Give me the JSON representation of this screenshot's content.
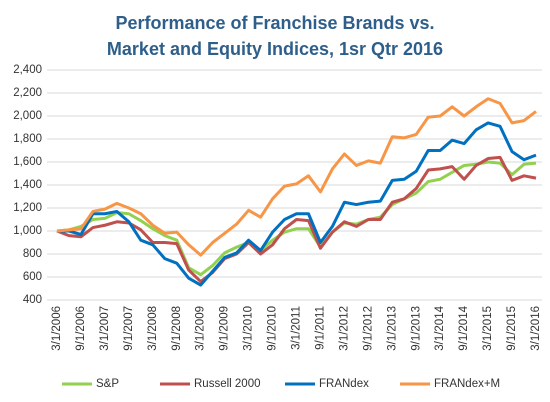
{
  "chart_data": {
    "type": "line",
    "title": "Performance of Franchise Brands vs. Market and Equity Indices, 1sr Qtr 2016",
    "categories": [
      "3/1/2006",
      null,
      "9/1/2006",
      null,
      "3/1/2007",
      null,
      "9/1/2007",
      null,
      "3/1/2008",
      null,
      "9/1/2008",
      null,
      "3/1/2009",
      null,
      "9/1/2009",
      null,
      "3/1/2010",
      null,
      "9/1/2010",
      null,
      "3/1/2011",
      null,
      "9/1/2011",
      null,
      "3/1/2012",
      null,
      "9/1/2012",
      null,
      "3/1/2013",
      null,
      "9/1/2013",
      null,
      "3/1/2014",
      null,
      "9/1/2014",
      null,
      "3/1/2015",
      null,
      "9/1/2015",
      null,
      "3/1/2016"
    ],
    "series": [
      {
        "name": "S&P",
        "color": "#92d050",
        "values": [
          1000,
          1010,
          1040,
          1100,
          1110,
          1160,
          1150,
          1090,
          1020,
          960,
          920,
          680,
          620,
          700,
          810,
          860,
          900,
          830,
          920,
          990,
          1020,
          1020,
          860,
          990,
          1070,
          1060,
          1100,
          1120,
          1230,
          1280,
          1330,
          1430,
          1450,
          1510,
          1570,
          1580,
          1600,
          1590,
          1490,
          1580,
          1590
        ]
      },
      {
        "name": "Russell 2000",
        "color": "#c0504d",
        "values": [
          1000,
          960,
          950,
          1030,
          1050,
          1080,
          1070,
          1010,
          900,
          900,
          890,
          660,
          560,
          640,
          760,
          800,
          900,
          800,
          880,
          1020,
          1100,
          1090,
          850,
          990,
          1080,
          1040,
          1100,
          1100,
          1250,
          1280,
          1370,
          1530,
          1540,
          1560,
          1450,
          1570,
          1630,
          1640,
          1440,
          1480,
          1460
        ]
      },
      {
        "name": "FRANdex",
        "color": "#0070c0",
        "values": [
          1000,
          1000,
          970,
          1150,
          1150,
          1170,
          1080,
          920,
          880,
          760,
          720,
          590,
          530,
          650,
          770,
          810,
          920,
          830,
          990,
          1100,
          1150,
          1150,
          900,
          1040,
          1250,
          1230,
          1250,
          1260,
          1440,
          1450,
          1520,
          1700,
          1700,
          1790,
          1760,
          1880,
          1940,
          1910,
          1690,
          1620,
          1660
        ]
      },
      {
        "name": "FRANdex+M",
        "color": "#f79646",
        "values": [
          1000,
          1010,
          1020,
          1170,
          1190,
          1240,
          1200,
          1150,
          1050,
          980,
          990,
          880,
          790,
          900,
          980,
          1060,
          1180,
          1120,
          1280,
          1390,
          1410,
          1480,
          1340,
          1540,
          1670,
          1570,
          1610,
          1590,
          1820,
          1810,
          1840,
          1990,
          2000,
          2080,
          2000,
          2080,
          2150,
          2110,
          1940,
          1960,
          2040
        ]
      }
    ],
    "ylim": [
      400,
      2400
    ],
    "yticks": [
      400,
      600,
      800,
      {
        "value": 1000,
        "label": "1,000"
      },
      {
        "value": 1200,
        "label": "1,200"
      },
      {
        "value": 1400,
        "label": "1,400"
      },
      {
        "value": 1600,
        "label": "1,600"
      },
      {
        "value": 1800,
        "label": "1,800"
      },
      {
        "value": 2000,
        "label": "2,000"
      },
      {
        "value": 2200,
        "label": "2,200"
      },
      {
        "value": 2400,
        "label": "2,400"
      }
    ],
    "grid": true,
    "legend": "bottom"
  }
}
